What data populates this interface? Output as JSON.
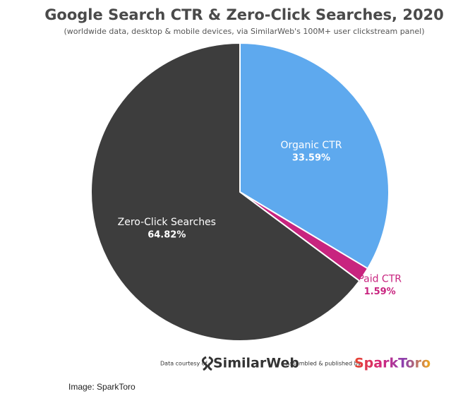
{
  "chart_data": {
    "type": "pie",
    "title": "Google Search CTR & Zero-Click Searches, 2020",
    "subtitle": "(worldwide data, desktop & mobile devices, via SimilarWeb's 100M+ user clickstream panel)",
    "categories": [
      "Organic CTR",
      "Paid CTR",
      "Zero-Click Searches"
    ],
    "values": [
      33.59,
      1.59,
      64.82
    ],
    "value_labels": [
      "33.59%",
      "1.59%",
      "64.82%"
    ],
    "colors": [
      "#5ea9ee",
      "#c8247f",
      "#3d3d3d"
    ]
  },
  "credits": {
    "data_text": "Data courtesy of",
    "data_source": "SimilarWeb",
    "published_text": "Assembled & published by",
    "publisher": "SparkToro"
  },
  "caption": "Image: SparkToro"
}
